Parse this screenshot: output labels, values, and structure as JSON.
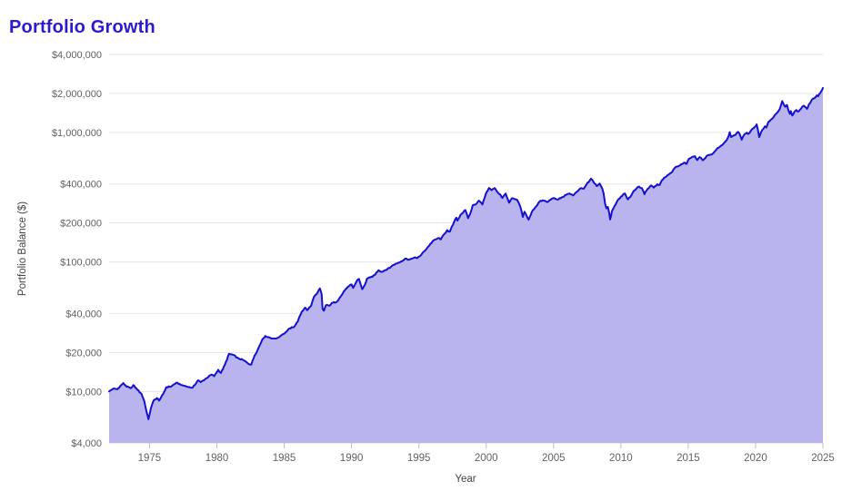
{
  "title": "Portfolio Growth",
  "colors": {
    "title": "#2d19d2",
    "line": "#1410cc",
    "fill": "#b9b3ee",
    "grid": "#e6e6e6",
    "tick_text": "#616161",
    "axis_title_text": "#424242",
    "background": "#ffffff"
  },
  "chart_data": {
    "type": "area",
    "title": "Portfolio Growth",
    "xlabel": "Year",
    "ylabel": "Portfolio Balance ($)",
    "y_scale": "log",
    "grid": "horizontal-only",
    "legend": "none",
    "x_range": [
      1972,
      2025
    ],
    "y_range": [
      4000,
      4000000
    ],
    "x_ticks": [
      1975,
      1980,
      1985,
      1990,
      1995,
      2000,
      2005,
      2010,
      2015,
      2020,
      2025
    ],
    "y_ticks": [
      {
        "value": 4000000,
        "label": "$4,000,000"
      },
      {
        "value": 2000000,
        "label": "$2,000,000"
      },
      {
        "value": 1000000,
        "label": "$1,000,000"
      },
      {
        "value": 400000,
        "label": "$400,000"
      },
      {
        "value": 200000,
        "label": "$200,000"
      },
      {
        "value": 100000,
        "label": "$100,000"
      },
      {
        "value": 40000,
        "label": "$40,000"
      },
      {
        "value": 20000,
        "label": "$20,000"
      },
      {
        "value": 10000,
        "label": "$10,000"
      },
      {
        "value": 4000,
        "label": "$4,000"
      }
    ],
    "series": [
      {
        "name": "Portfolio Balance",
        "points": [
          [
            1972.0,
            10000
          ],
          [
            1972.3,
            10500
          ],
          [
            1972.6,
            10400
          ],
          [
            1972.9,
            11200
          ],
          [
            1973.05,
            11600
          ],
          [
            1973.3,
            10900
          ],
          [
            1973.6,
            10600
          ],
          [
            1973.8,
            11200
          ],
          [
            1974.1,
            10300
          ],
          [
            1974.4,
            9600
          ],
          [
            1974.6,
            8500
          ],
          [
            1974.75,
            7200
          ],
          [
            1974.92,
            6100
          ],
          [
            1975.1,
            7400
          ],
          [
            1975.3,
            8500
          ],
          [
            1975.55,
            8900
          ],
          [
            1975.7,
            8500
          ],
          [
            1976.0,
            9500
          ],
          [
            1976.25,
            10800
          ],
          [
            1976.6,
            10900
          ],
          [
            1977.0,
            11700
          ],
          [
            1977.4,
            11200
          ],
          [
            1977.9,
            10800
          ],
          [
            1978.2,
            10700
          ],
          [
            1978.6,
            12200
          ],
          [
            1978.8,
            11800
          ],
          [
            1979.2,
            12600
          ],
          [
            1979.6,
            13500
          ],
          [
            1979.8,
            13100
          ],
          [
            1980.1,
            14700
          ],
          [
            1980.3,
            13900
          ],
          [
            1980.6,
            16100
          ],
          [
            1980.9,
            19500
          ],
          [
            1981.2,
            19200
          ],
          [
            1981.6,
            18000
          ],
          [
            1982.0,
            17400
          ],
          [
            1982.3,
            16500
          ],
          [
            1982.55,
            16100
          ],
          [
            1982.8,
            18900
          ],
          [
            1983.05,
            21200
          ],
          [
            1983.4,
            25500
          ],
          [
            1983.6,
            26800
          ],
          [
            1983.9,
            26100
          ],
          [
            1984.2,
            25600
          ],
          [
            1984.5,
            25900
          ],
          [
            1984.8,
            27200
          ],
          [
            1985.1,
            28600
          ],
          [
            1985.4,
            30700
          ],
          [
            1985.7,
            31300
          ],
          [
            1986.0,
            34600
          ],
          [
            1986.3,
            41200
          ],
          [
            1986.55,
            44400
          ],
          [
            1986.7,
            42400
          ],
          [
            1987.0,
            45900
          ],
          [
            1987.2,
            53500
          ],
          [
            1987.45,
            57300
          ],
          [
            1987.65,
            62400
          ],
          [
            1987.78,
            56500
          ],
          [
            1987.85,
            43400
          ],
          [
            1987.95,
            42000
          ],
          [
            1988.1,
            46400
          ],
          [
            1988.35,
            45900
          ],
          [
            1988.6,
            48500
          ],
          [
            1988.9,
            49200
          ],
          [
            1989.2,
            54200
          ],
          [
            1989.5,
            60400
          ],
          [
            1989.8,
            64900
          ],
          [
            1990.0,
            67100
          ],
          [
            1990.12,
            63100
          ],
          [
            1990.45,
            72900
          ],
          [
            1990.55,
            73900
          ],
          [
            1990.8,
            61600
          ],
          [
            1991.0,
            66900
          ],
          [
            1991.15,
            74400
          ],
          [
            1991.4,
            75900
          ],
          [
            1991.7,
            79000
          ],
          [
            1992.0,
            86300
          ],
          [
            1992.25,
            83900
          ],
          [
            1992.5,
            86500
          ],
          [
            1992.8,
            89700
          ],
          [
            1993.1,
            94800
          ],
          [
            1993.4,
            97700
          ],
          [
            1993.7,
            101000
          ],
          [
            1994.0,
            106300
          ],
          [
            1994.25,
            103900
          ],
          [
            1994.5,
            106200
          ],
          [
            1994.7,
            108500
          ],
          [
            1994.88,
            106900
          ],
          [
            1995.1,
            111400
          ],
          [
            1995.4,
            120900
          ],
          [
            1995.7,
            131500
          ],
          [
            1996.0,
            143700
          ],
          [
            1996.25,
            149400
          ],
          [
            1996.5,
            152900
          ],
          [
            1996.62,
            149100
          ],
          [
            1996.9,
            164600
          ],
          [
            1997.1,
            175900
          ],
          [
            1997.3,
            171300
          ],
          [
            1997.6,
            201500
          ],
          [
            1997.78,
            219900
          ],
          [
            1997.86,
            208400
          ],
          [
            1998.1,
            231500
          ],
          [
            1998.45,
            251400
          ],
          [
            1998.65,
            217700
          ],
          [
            1998.8,
            233500
          ],
          [
            1999.0,
            274000
          ],
          [
            1999.2,
            277500
          ],
          [
            1999.45,
            297700
          ],
          [
            1999.72,
            277900
          ],
          [
            1999.95,
            330800
          ],
          [
            2000.2,
            372500
          ],
          [
            2000.4,
            358400
          ],
          [
            2000.62,
            371900
          ],
          [
            2000.85,
            344700
          ],
          [
            2001.05,
            331300
          ],
          [
            2001.2,
            311900
          ],
          [
            2001.45,
            337400
          ],
          [
            2001.7,
            286500
          ],
          [
            2001.9,
            309900
          ],
          [
            2002.1,
            305800
          ],
          [
            2002.3,
            300900
          ],
          [
            2002.55,
            263900
          ],
          [
            2002.72,
            222800
          ],
          [
            2002.85,
            244000
          ],
          [
            2003.0,
            227000
          ],
          [
            2003.15,
            212000
          ],
          [
            2003.45,
            250000
          ],
          [
            2003.7,
            268000
          ],
          [
            2003.95,
            292000
          ],
          [
            2004.2,
            299000
          ],
          [
            2004.55,
            290000
          ],
          [
            2004.85,
            307000
          ],
          [
            2005.1,
            309000
          ],
          [
            2005.3,
            303000
          ],
          [
            2005.6,
            315000
          ],
          [
            2005.95,
            330000
          ],
          [
            2006.2,
            338000
          ],
          [
            2006.45,
            326000
          ],
          [
            2006.8,
            352000
          ],
          [
            2007.05,
            372000
          ],
          [
            2007.25,
            368000
          ],
          [
            2007.45,
            398000
          ],
          [
            2007.6,
            412000
          ],
          [
            2007.78,
            440000
          ],
          [
            2007.95,
            418000
          ],
          [
            2008.2,
            386000
          ],
          [
            2008.42,
            403000
          ],
          [
            2008.62,
            368000
          ],
          [
            2008.72,
            337000
          ],
          [
            2008.83,
            281000
          ],
          [
            2008.93,
            259000
          ],
          [
            2009.03,
            266000
          ],
          [
            2009.12,
            243000
          ],
          [
            2009.2,
            213000
          ],
          [
            2009.35,
            249000
          ],
          [
            2009.5,
            267000
          ],
          [
            2009.75,
            298000
          ],
          [
            2010.0,
            319000
          ],
          [
            2010.3,
            338000
          ],
          [
            2010.52,
            304000
          ],
          [
            2010.68,
            316000
          ],
          [
            2010.95,
            353000
          ],
          [
            2011.15,
            368000
          ],
          [
            2011.35,
            382000
          ],
          [
            2011.55,
            372000
          ],
          [
            2011.75,
            333000
          ],
          [
            2011.88,
            353000
          ],
          [
            2012.0,
            368000
          ],
          [
            2012.25,
            390000
          ],
          [
            2012.45,
            375000
          ],
          [
            2012.7,
            398000
          ],
          [
            2012.88,
            393000
          ],
          [
            2013.05,
            428000
          ],
          [
            2013.3,
            452000
          ],
          [
            2013.55,
            472000
          ],
          [
            2013.8,
            494000
          ],
          [
            2014.05,
            539000
          ],
          [
            2014.3,
            551000
          ],
          [
            2014.55,
            569000
          ],
          [
            2014.75,
            585000
          ],
          [
            2014.88,
            572000
          ],
          [
            2015.05,
            625000
          ],
          [
            2015.3,
            648000
          ],
          [
            2015.5,
            655000
          ],
          [
            2015.67,
            612000
          ],
          [
            2015.85,
            645000
          ],
          [
            2016.1,
            610000
          ],
          [
            2016.35,
            655000
          ],
          [
            2016.6,
            672000
          ],
          [
            2016.85,
            690000
          ],
          [
            2017.1,
            740000
          ],
          [
            2017.35,
            775000
          ],
          [
            2017.6,
            815000
          ],
          [
            2017.85,
            872000
          ],
          [
            2018.0,
            940000
          ],
          [
            2018.08,
            1005000
          ],
          [
            2018.18,
            922000
          ],
          [
            2018.45,
            952000
          ],
          [
            2018.7,
            1010000
          ],
          [
            2018.88,
            935000
          ],
          [
            2018.97,
            878000
          ],
          [
            2019.12,
            950000
          ],
          [
            2019.35,
            995000
          ],
          [
            2019.45,
            972000
          ],
          [
            2019.65,
            1030000
          ],
          [
            2019.95,
            1105000
          ],
          [
            2020.08,
            1155000
          ],
          [
            2020.18,
            1040000
          ],
          [
            2020.27,
            920000
          ],
          [
            2020.42,
            1010000
          ],
          [
            2020.57,
            1065000
          ],
          [
            2020.7,
            1115000
          ],
          [
            2020.8,
            1090000
          ],
          [
            2020.95,
            1205000
          ],
          [
            2021.1,
            1245000
          ],
          [
            2021.35,
            1320000
          ],
          [
            2021.6,
            1420000
          ],
          [
            2021.8,
            1520000
          ],
          [
            2021.9,
            1640000
          ],
          [
            2021.98,
            1745000
          ],
          [
            2022.1,
            1640000
          ],
          [
            2022.2,
            1575000
          ],
          [
            2022.33,
            1630000
          ],
          [
            2022.45,
            1470000
          ],
          [
            2022.55,
            1390000
          ],
          [
            2022.62,
            1460000
          ],
          [
            2022.73,
            1350000
          ],
          [
            2022.88,
            1440000
          ],
          [
            2023.03,
            1490000
          ],
          [
            2023.17,
            1450000
          ],
          [
            2023.38,
            1530000
          ],
          [
            2023.58,
            1610000
          ],
          [
            2023.67,
            1575000
          ],
          [
            2023.82,
            1520000
          ],
          [
            2023.97,
            1655000
          ],
          [
            2024.12,
            1740000
          ],
          [
            2024.28,
            1825000
          ],
          [
            2024.45,
            1870000
          ],
          [
            2024.55,
            1930000
          ],
          [
            2024.65,
            1905000
          ],
          [
            2024.78,
            2000000
          ],
          [
            2024.88,
            2080000
          ],
          [
            2024.97,
            2160000
          ],
          [
            2025.0,
            2205000
          ]
        ]
      }
    ]
  }
}
